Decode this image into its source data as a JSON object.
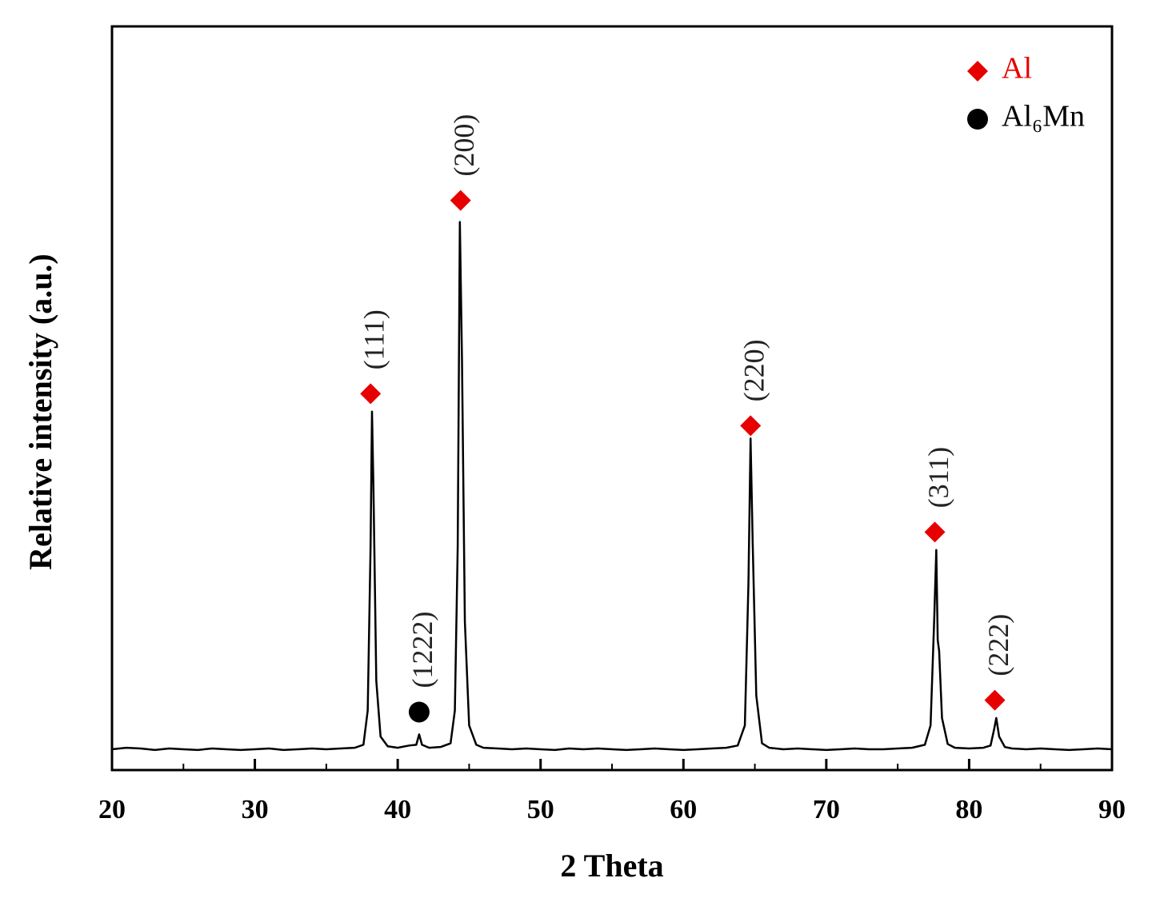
{
  "chart_data": {
    "type": "line",
    "xlabel": "2 Theta",
    "ylabel": "Relative intensity (a.u.)",
    "xlim": [
      20,
      90
    ],
    "xticks": [
      20,
      30,
      40,
      50,
      60,
      70,
      80,
      90
    ],
    "xminorticks": [
      25,
      35,
      45,
      55,
      65,
      75,
      85
    ],
    "ylim": [
      0,
      100
    ],
    "color": "#000000",
    "x": [
      20,
      21,
      22,
      23,
      24,
      25,
      26,
      27,
      28,
      29,
      30,
      31,
      32,
      33,
      34,
      35,
      36,
      37,
      37.6,
      37.9,
      38.1,
      38.2,
      38.3,
      38.5,
      38.8,
      39.3,
      40,
      40.8,
      41.3,
      41.5,
      41.7,
      42.2,
      43,
      43.7,
      44.0,
      44.2,
      44.35,
      44.5,
      44.7,
      45.0,
      45.5,
      46,
      47,
      48,
      49,
      50,
      51,
      52,
      53,
      54,
      55,
      56,
      57,
      58,
      59,
      60,
      61,
      62,
      63,
      63.8,
      64.3,
      64.55,
      64.7,
      64.85,
      65.1,
      65.5,
      66,
      67,
      68,
      69,
      70,
      71,
      72,
      73,
      74,
      75,
      76,
      76.9,
      77.3,
      77.55,
      77.7,
      77.8,
      77.9,
      78.1,
      78.5,
      79,
      80,
      81,
      81.5,
      81.75,
      81.9,
      82.1,
      82.5,
      83,
      84,
      85,
      86,
      87,
      88,
      89,
      90
    ],
    "values": [
      2.8,
      3.0,
      2.9,
      2.7,
      2.9,
      2.8,
      2.7,
      2.9,
      2.8,
      2.7,
      2.8,
      2.9,
      2.7,
      2.8,
      2.9,
      2.8,
      2.9,
      3.0,
      3.4,
      8,
      30,
      48.2,
      38,
      12,
      4.5,
      3.2,
      3.0,
      3.3,
      3.4,
      4.8,
      3.4,
      3.0,
      3.1,
      3.6,
      8,
      30,
      73.7,
      55,
      20,
      6,
      3.4,
      3.0,
      2.9,
      2.8,
      2.9,
      2.8,
      2.7,
      2.9,
      2.8,
      2.9,
      2.8,
      2.7,
      2.8,
      2.9,
      2.8,
      2.7,
      2.8,
      2.9,
      3.0,
      3.3,
      6,
      25,
      44.6,
      30.4,
      10,
      3.6,
      3.0,
      2.8,
      2.9,
      2.8,
      2.7,
      2.8,
      2.9,
      2.8,
      2.8,
      2.9,
      3.0,
      3.4,
      6,
      20,
      29.6,
      17.5,
      16,
      7,
      3.5,
      3.0,
      2.9,
      3.0,
      3.3,
      5.5,
      7.0,
      4.5,
      3.1,
      2.9,
      2.8,
      2.9,
      2.8,
      2.7,
      2.8,
      2.9,
      2.8
    ],
    "legend": [
      {
        "name": "Al",
        "marker": "diamond",
        "color": "#e60000"
      },
      {
        "name": "Al₆Mn",
        "marker": "circle",
        "color": "#000000"
      }
    ],
    "annotations": [
      {
        "text": "(111)",
        "x": 38.1,
        "y": 50.6,
        "phase": 0
      },
      {
        "text": "(1222)",
        "x": 41.5,
        "y": 7.8,
        "phase": 1
      },
      {
        "text": "(200)",
        "x": 44.4,
        "y": 76.6,
        "phase": 0
      },
      {
        "text": "(220)",
        "x": 64.7,
        "y": 46.3,
        "phase": 0
      },
      {
        "text": "(311)",
        "x": 77.6,
        "y": 32.0,
        "phase": 0
      },
      {
        "text": "(222)",
        "x": 81.8,
        "y": 9.4,
        "phase": 0
      }
    ]
  }
}
